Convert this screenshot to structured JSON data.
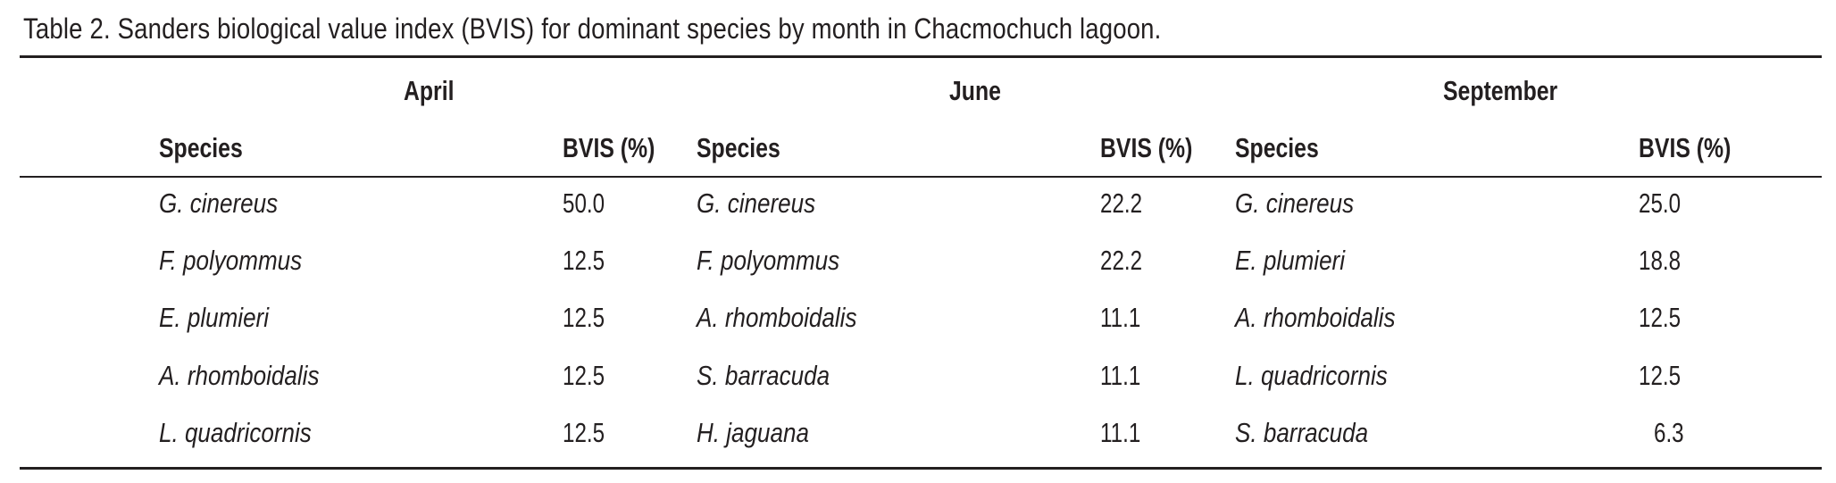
{
  "caption": "Table 2. Sanders biological value index (BVIS) for dominant species by month in Chacmochuch lagoon.",
  "months": [
    {
      "name": "April",
      "species_header": "Species",
      "value_header": "BVIS (%)",
      "rows": [
        {
          "species": "G. cinereus",
          "bvis": "50.0"
        },
        {
          "species": "F. polyommus",
          "bvis": "12.5"
        },
        {
          "species": "E. plumieri",
          "bvis": "12.5"
        },
        {
          "species": "A. rhomboidalis",
          "bvis": "12.5"
        },
        {
          "species": "L. quadricornis",
          "bvis": "12.5"
        }
      ]
    },
    {
      "name": "June",
      "species_header": "Species",
      "value_header": "BVIS (%)",
      "rows": [
        {
          "species": "G. cinereus",
          "bvis": "22.2"
        },
        {
          "species": "F. polyommus",
          "bvis": "22.2"
        },
        {
          "species": "A. rhomboidalis",
          "bvis": "11.1"
        },
        {
          "species": "S. barracuda",
          "bvis": "11.1"
        },
        {
          "species": "H. jaguana",
          "bvis": "11.1"
        }
      ]
    },
    {
      "name": "September",
      "species_header": "Species",
      "value_header": "BVIS (%)",
      "rows": [
        {
          "species": "G. cinereus",
          "bvis": "25.0"
        },
        {
          "species": "E. plumieri",
          "bvis": "18.8"
        },
        {
          "species": "A. rhomboidalis",
          "bvis": "12.5"
        },
        {
          "species": "L. quadricornis",
          "bvis": "12.5"
        },
        {
          "species": "S. barracuda",
          "bvis": "6.3"
        }
      ]
    }
  ]
}
